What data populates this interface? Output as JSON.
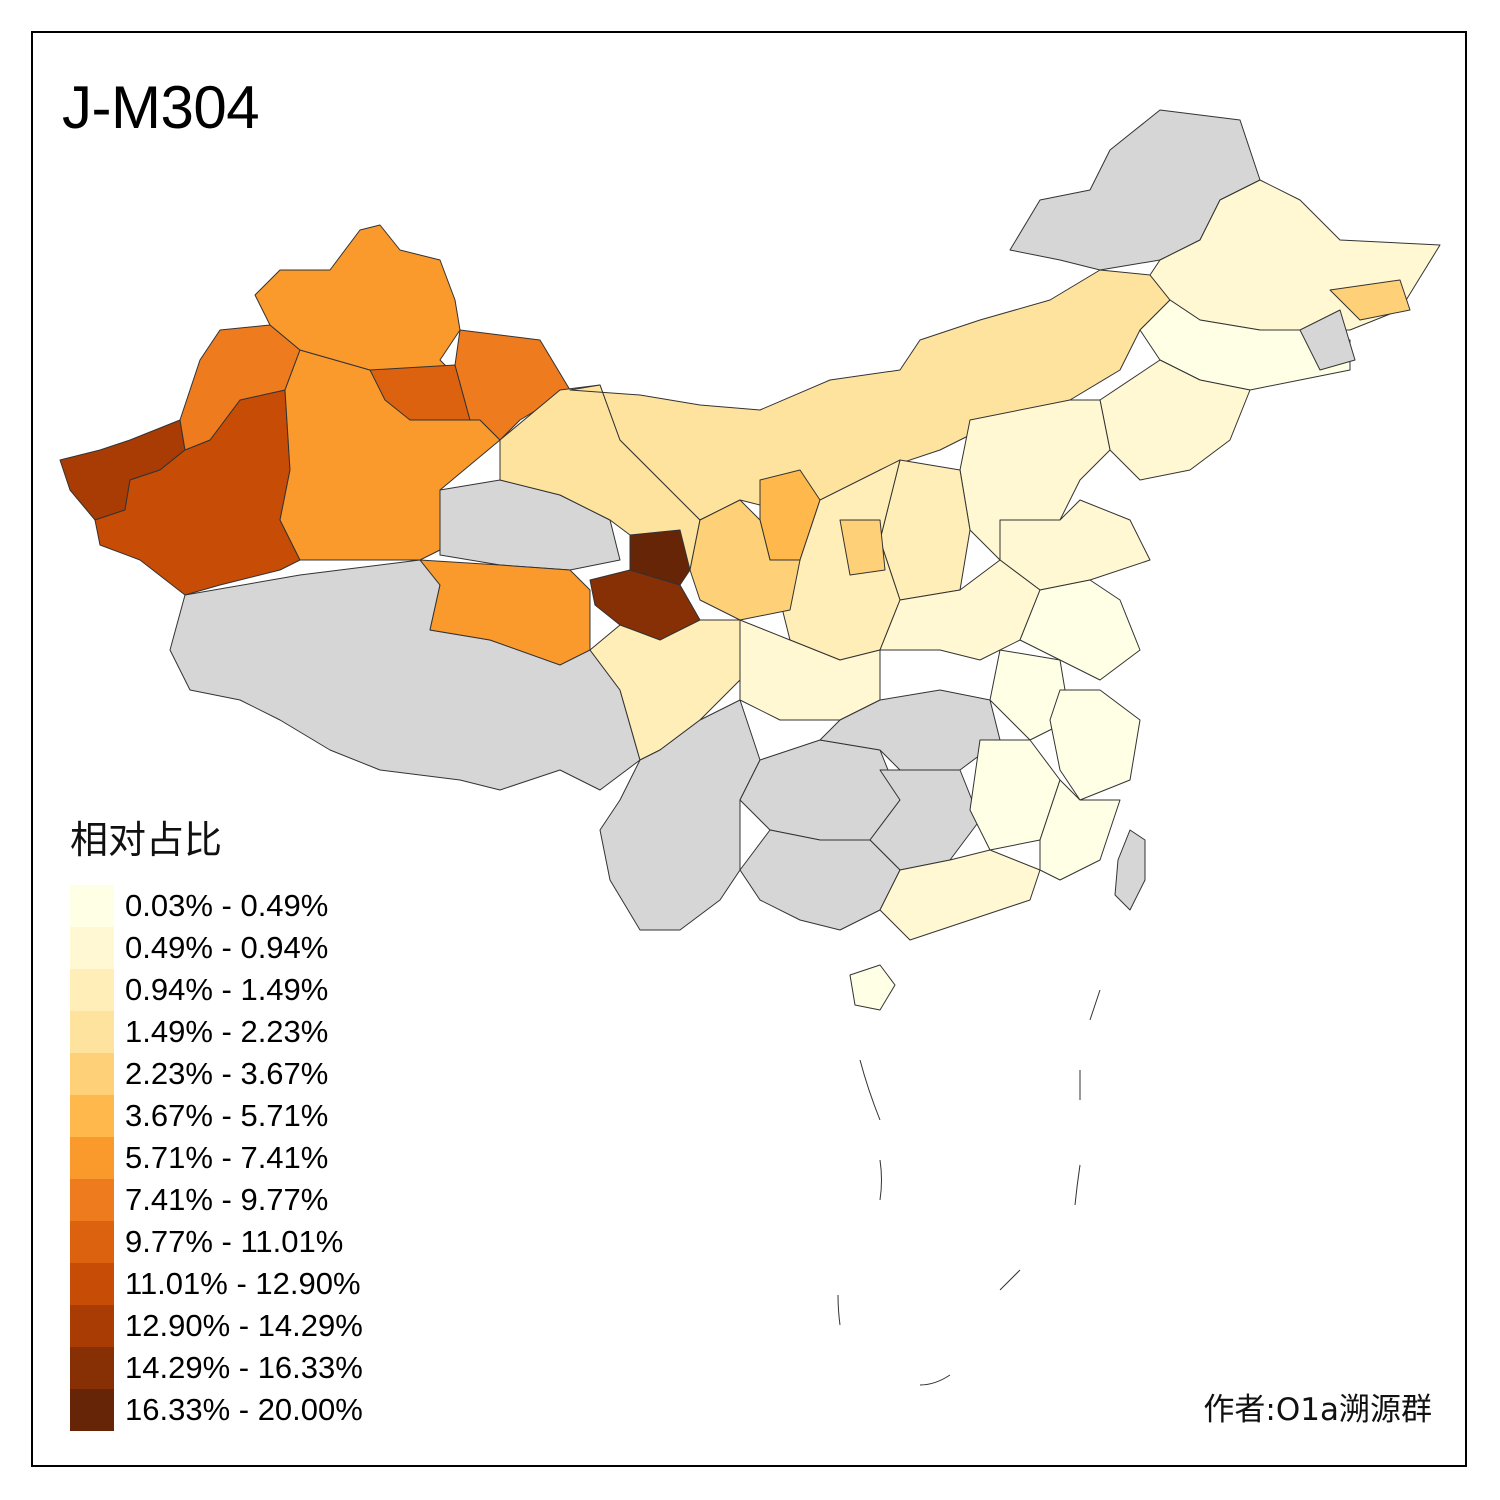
{
  "title": "J-M304",
  "legend": {
    "title": "相对占比",
    "items": [
      {
        "label": "0.03% - 0.49%",
        "color": "#FFFFE5"
      },
      {
        "label": "0.49% - 0.94%",
        "color": "#FFF8D2"
      },
      {
        "label": "0.94% - 1.49%",
        "color": "#FFEEB7"
      },
      {
        "label": "1.49% - 2.23%",
        "color": "#FEE39F"
      },
      {
        "label": "2.23% - 3.67%",
        "color": "#FED178"
      },
      {
        "label": "3.67% - 5.71%",
        "color": "#FEB84C"
      },
      {
        "label": "5.71% - 7.41%",
        "color": "#FB9A2C"
      },
      {
        "label": "7.41% - 9.77%",
        "color": "#EE7B1E"
      },
      {
        "label": "9.77% - 11.01%",
        "color": "#DD6210"
      },
      {
        "label": "11.01% - 12.90%",
        "color": "#C74D06"
      },
      {
        "label": "12.90% - 14.29%",
        "color": "#A83C04"
      },
      {
        "label": "14.29% - 16.33%",
        "color": "#873005"
      },
      {
        "label": "16.33% - 20.00%",
        "color": "#662506"
      }
    ]
  },
  "no_data_color": "#D6D6D6",
  "border_color": "#333333",
  "credit": "作者:O1a溯源群"
}
